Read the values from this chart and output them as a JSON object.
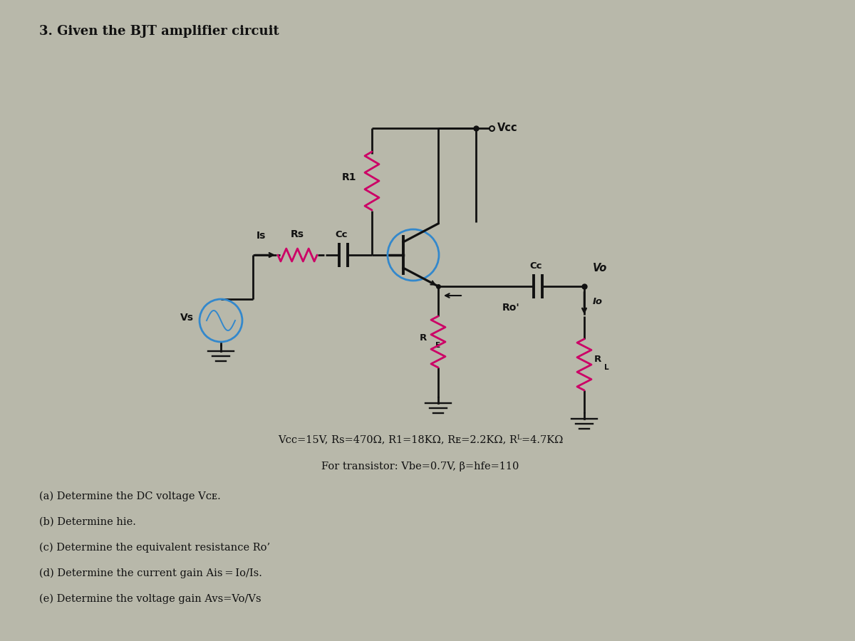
{
  "title": "3. Given the BJT amplifier circuit",
  "bg_color": "#b8b8aa",
  "line_color": "#111111",
  "resistor_color": "#cc0066",
  "transistor_color": "#3388cc",
  "source_color": "#3388cc",
  "cap_color": "#3388cc",
  "params_line1": "Vcc=15V, Rs=470Ω, R1=18KΩ, RE=2.2KΩ, RL=4.7KΩ",
  "params_line2": "For transistor: Vbe=0.7V, β=hfe=110",
  "q1": "(a) Determine the DC voltage VCE.",
  "q2": "(b) Determine hie.",
  "q3": "(c) Determine the equivalent resistance Ro’",
  "q4": "(d) Determine the current gain Ais=Io/Is.",
  "q5": "(e) Determine the voltage gain Avs=Vo/Vs"
}
